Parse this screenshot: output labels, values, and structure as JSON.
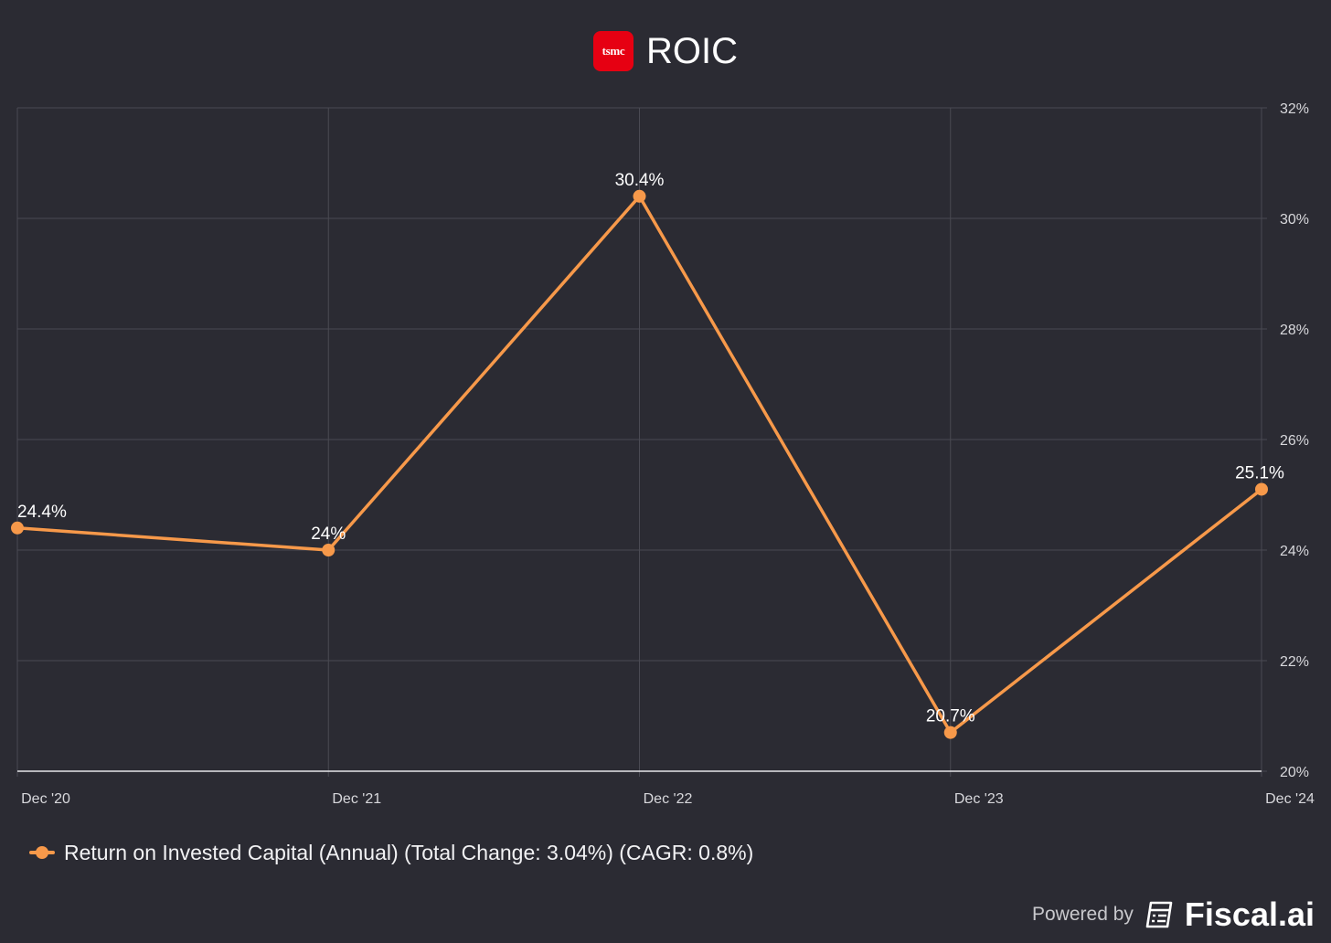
{
  "header": {
    "logo_text": "tsmc",
    "title": "ROIC"
  },
  "chart_data": {
    "type": "line",
    "title": "ROIC",
    "categories": [
      "Dec '20",
      "Dec '21",
      "Dec '22",
      "Dec '23",
      "Dec '24"
    ],
    "series": [
      {
        "name": "Return on Invested Capital (Annual) (Total Change: 3.04%) (CAGR: 0.8%)",
        "values": [
          24.4,
          24.0,
          30.4,
          20.7,
          25.1
        ],
        "labels": [
          "24.4%",
          "24%",
          "30.4%",
          "20.7%",
          "25.1%"
        ],
        "color": "#f7994a"
      }
    ],
    "ylim": [
      20,
      32
    ],
    "yticks": [
      20,
      22,
      24,
      26,
      28,
      30,
      32
    ],
    "ytick_labels": [
      "20%",
      "22%",
      "24%",
      "26%",
      "28%",
      "30%",
      "32%"
    ],
    "y_axis_side": "right",
    "grid": true,
    "legend_position": "bottom-left"
  },
  "legend": {
    "label": "Return on Invested Capital (Annual) (Total Change: 3.04%) (CAGR: 0.8%)"
  },
  "footer": {
    "powered_by": "Powered by",
    "brand": "Fiscal.ai"
  },
  "colors": {
    "background": "#2b2b33",
    "grid": "#4a4a53",
    "line": "#f7994a",
    "tsmc_red": "#e60012"
  }
}
